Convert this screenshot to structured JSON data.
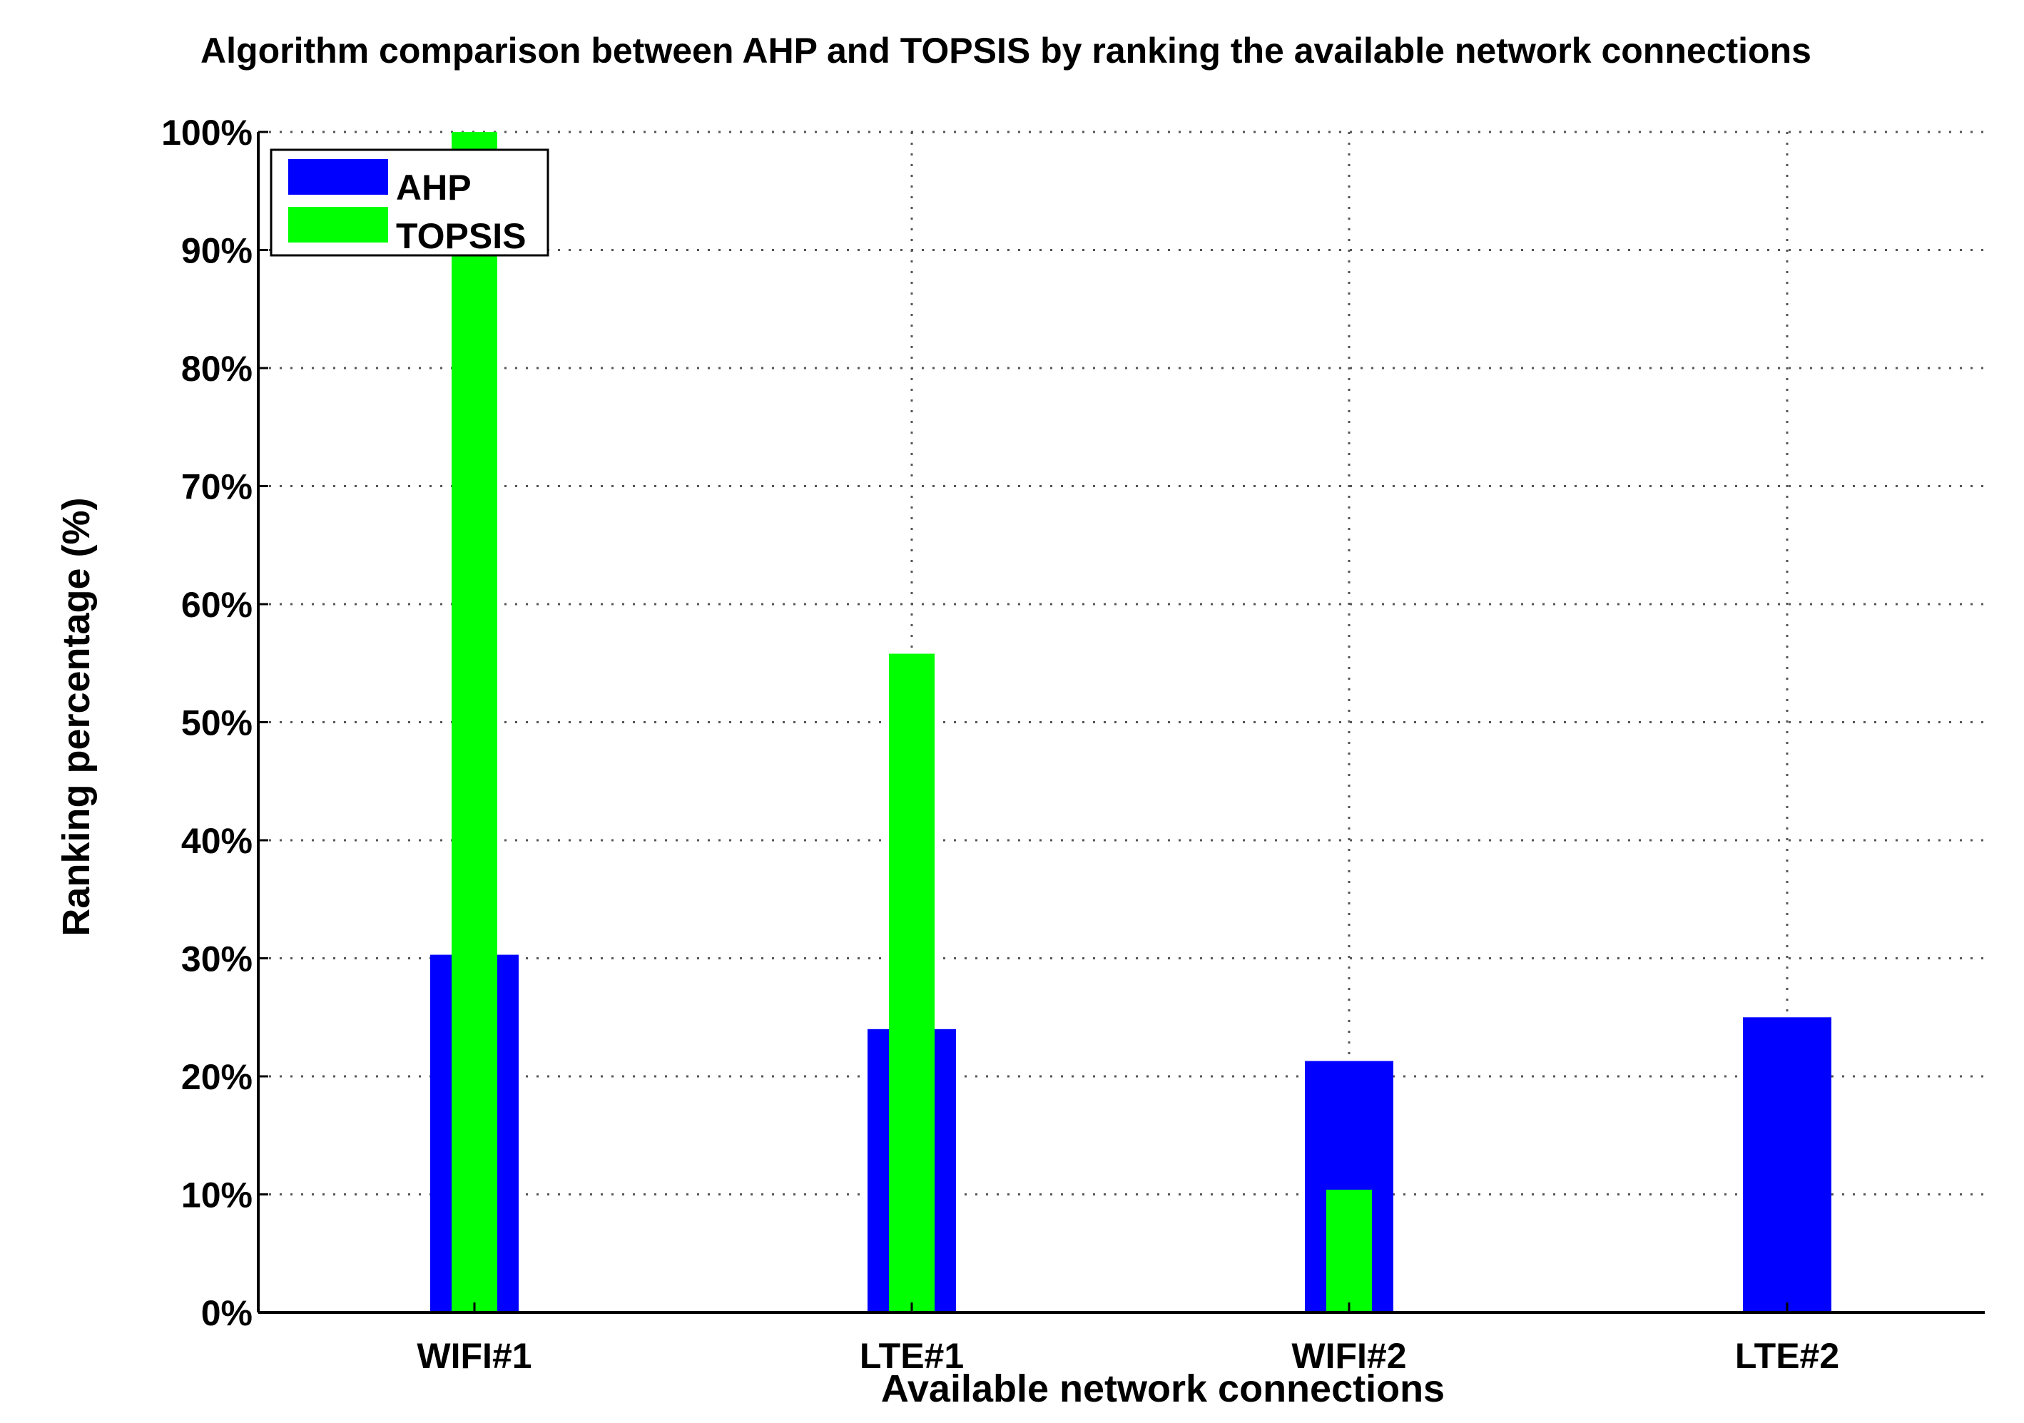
{
  "chart_data": {
    "type": "bar",
    "title": "Algorithm comparison between AHP and TOPSIS by ranking the available network connections",
    "xlabel": "Available network connections",
    "ylabel": "Ranking percentage (%)",
    "categories": [
      "WIFI#1",
      "LTE#1",
      "WIFI#2",
      "LTE#2"
    ],
    "series": [
      {
        "name": "AHP",
        "color": "#0000ff",
        "values": [
          30.3,
          24.0,
          21.3,
          25.0
        ]
      },
      {
        "name": "TOPSIS",
        "color": "#00ff00",
        "values": [
          100.0,
          55.8,
          10.4,
          0.1
        ]
      }
    ],
    "ylim": [
      0,
      100
    ],
    "yticks": [
      0,
      10,
      20,
      30,
      40,
      50,
      60,
      70,
      80,
      90,
      100
    ],
    "ytick_labels": [
      "0%",
      "10%",
      "20%",
      "30%",
      "40%",
      "50%",
      "60%",
      "70%",
      "80%",
      "90%",
      "100%"
    ],
    "grid": true,
    "legend_position": "top-left"
  }
}
